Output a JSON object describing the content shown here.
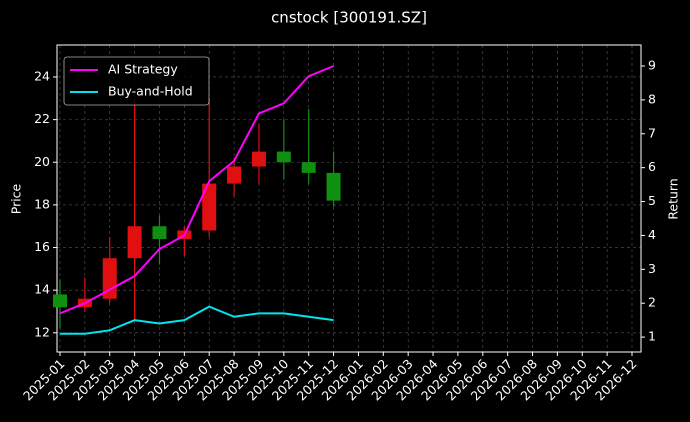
{
  "chart_data": {
    "type": "candlestick",
    "title": "cnstock [300191.SZ]",
    "ylabel": "Price",
    "y2label": "Return",
    "categories": [
      "2025-01",
      "2025-02",
      "2025-03",
      "2025-04",
      "2025-05",
      "2025-06",
      "2025-07",
      "2025-08",
      "2025-09",
      "2025-10",
      "2025-11",
      "2025-12",
      "2026-01",
      "2026-02",
      "2026-03",
      "2026-04",
      "2026-05",
      "2026-06",
      "2026-07",
      "2026-08",
      "2026-09",
      "2026-10",
      "2026-11",
      "2026-12"
    ],
    "open": [
      13.8,
      13.2,
      13.6,
      15.5,
      17.0,
      16.4,
      16.8,
      19.0,
      19.8,
      20.5,
      20.0,
      19.5,
      null,
      null,
      null,
      null,
      null,
      null,
      null,
      null,
      null,
      null,
      null,
      null
    ],
    "high": [
      14.5,
      14.6,
      16.5,
      23.0,
      17.5,
      17.0,
      23.0,
      20.2,
      21.8,
      22.0,
      22.5,
      20.5,
      null,
      null,
      null,
      null,
      null,
      null,
      null,
      null,
      null,
      null,
      null,
      null
    ],
    "low": [
      12.2,
      13.0,
      13.4,
      12.6,
      15.2,
      15.6,
      16.5,
      18.4,
      19.0,
      19.2,
      19.0,
      17.9,
      null,
      null,
      null,
      null,
      null,
      null,
      null,
      null,
      null,
      null,
      null,
      null
    ],
    "close": [
      13.2,
      13.6,
      15.5,
      17.0,
      16.4,
      16.8,
      19.0,
      19.8,
      20.5,
      20.0,
      19.5,
      18.2,
      null,
      null,
      null,
      null,
      null,
      null,
      null,
      null,
      null,
      null,
      null,
      null
    ],
    "up_color": "#e01010",
    "down_color": "#109010",
    "series": [
      {
        "name": "AI Strategy",
        "color": "#ff00ff",
        "axis": "y2",
        "values": [
          1.7,
          2.0,
          2.4,
          2.8,
          3.6,
          4.0,
          5.6,
          6.2,
          7.6,
          7.9,
          8.7,
          9.0,
          null,
          null,
          null,
          null,
          null,
          null,
          null,
          null,
          null,
          null,
          null,
          null
        ]
      },
      {
        "name": "Buy-and-Hold",
        "color": "#00e5ee",
        "axis": "y2",
        "values": [
          1.1,
          1.1,
          1.2,
          1.5,
          1.4,
          1.5,
          1.9,
          1.6,
          1.7,
          1.7,
          1.6,
          1.5,
          null,
          null,
          null,
          null,
          null,
          null,
          null,
          null,
          null,
          null,
          null,
          null
        ]
      }
    ],
    "ylim": [
      11.1,
      25.5
    ],
    "yticks": [
      12,
      14,
      16,
      18,
      20,
      22,
      24
    ],
    "y2lim": [
      0.56,
      9.62
    ],
    "y2ticks": [
      1,
      2,
      3,
      4,
      5,
      6,
      7,
      8,
      9
    ],
    "grid": true,
    "legend": "upper-left"
  }
}
